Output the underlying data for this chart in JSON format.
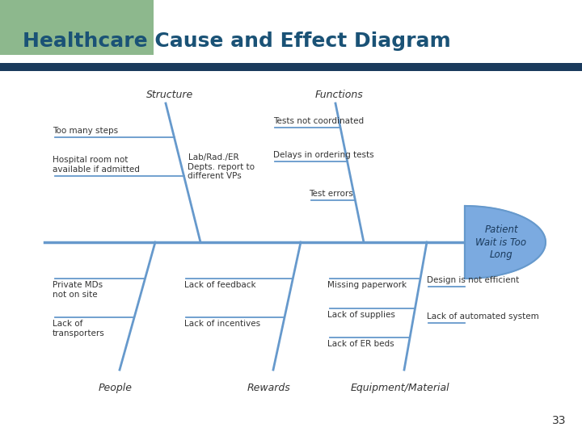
{
  "title": "Healthcare Cause and Effect Diagram",
  "title_color": "#1a5276",
  "title_fontsize": 18,
  "bg_color": "#ffffff",
  "header_bar_color": "#1a3a5c",
  "green_rect_color": "#8db88d",
  "slide_number": "33",
  "spine_color": "#6699cc",
  "spine_lw": 2.5,
  "bone_color": "#6699cc",
  "bone_lw": 2.0,
  "effect_box_color": "#7baae0",
  "effect_text": "Patient\nWait is Too\nLong",
  "effect_text_color": "#1a3a5c",
  "categories": {
    "top_left": "Structure",
    "top_right": "Functions",
    "bottom_left": "People",
    "bottom_mid": "Rewards",
    "bottom_right": "Equipment/Material"
  },
  "text_color": "#333333",
  "font_size": 7.5
}
